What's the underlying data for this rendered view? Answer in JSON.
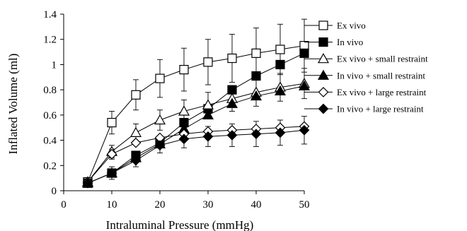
{
  "chart_data": {
    "type": "line",
    "title": "",
    "xlabel": "Intraluminal Pressure (mmHg)",
    "ylabel": "Inflated Volume (ml)",
    "xlim": [
      0,
      50
    ],
    "ylim": [
      0,
      1.4
    ],
    "xticks": [
      0,
      10,
      20,
      30,
      40,
      50
    ],
    "yticks": [
      0,
      0.2,
      0.4,
      0.6,
      0.8,
      1,
      1.2,
      1.4
    ],
    "xtick_labels": [
      "0",
      "10",
      "20",
      "30",
      "40",
      "50"
    ],
    "ytick_labels": [
      "0",
      "0.2",
      "0.4",
      "0.6",
      "0.8",
      "1",
      "1.2",
      "1.4"
    ],
    "grid": false,
    "legend_position": "right",
    "x": [
      5,
      10,
      15,
      20,
      25,
      30,
      35,
      40,
      45,
      50
    ],
    "series": [
      {
        "name": "Ex vivo",
        "marker": "square-open",
        "values": [
          0.07,
          0.54,
          0.76,
          0.89,
          0.96,
          1.02,
          1.05,
          1.09,
          1.12,
          1.15
        ],
        "error": [
          0.0,
          0.09,
          0.12,
          0.15,
          0.17,
          0.18,
          0.19,
          0.2,
          0.2,
          0.21
        ]
      },
      {
        "name": "In vivo",
        "marker": "square-filled",
        "values": [
          0.06,
          0.14,
          0.28,
          0.38,
          0.54,
          0.65,
          0.8,
          0.91,
          1.0,
          1.09
        ],
        "error": [
          0.0,
          0.0,
          0.0,
          0.0,
          0.0,
          0.0,
          0.0,
          0.0,
          0.0,
          0.0
        ]
      },
      {
        "name": "Ex vivo + small restraint",
        "marker": "triangle-open",
        "values": [
          0.07,
          0.31,
          0.46,
          0.56,
          0.63,
          0.68,
          0.73,
          0.78,
          0.82,
          0.85
        ],
        "error": [
          0.0,
          0.05,
          0.07,
          0.08,
          0.09,
          0.1,
          0.1,
          0.11,
          0.11,
          0.12
        ]
      },
      {
        "name": "In vivo + small restraint",
        "marker": "triangle-filled",
        "values": [
          0.06,
          0.14,
          0.26,
          0.37,
          0.49,
          0.6,
          0.69,
          0.75,
          0.79,
          0.83
        ],
        "error": [
          0.0,
          0.0,
          0.0,
          0.0,
          0.0,
          0.0,
          0.0,
          0.0,
          0.0,
          0.0
        ]
      },
      {
        "name": "Ex vivo + large restraint",
        "marker": "diamond-open",
        "values": [
          0.07,
          0.29,
          0.38,
          0.42,
          0.45,
          0.47,
          0.48,
          0.49,
          0.5,
          0.51
        ],
        "error": [
          0.0,
          0.04,
          0.0,
          0.0,
          0.0,
          0.0,
          0.0,
          0.0,
          0.0,
          0.0
        ]
      },
      {
        "name": "In vivo + large restraint",
        "marker": "diamond-filled",
        "values": [
          0.06,
          0.14,
          0.24,
          0.36,
          0.41,
          0.43,
          0.44,
          0.45,
          0.46,
          0.48
        ],
        "error": [
          0.0,
          0.05,
          0.05,
          0.06,
          0.07,
          0.08,
          0.09,
          0.1,
          0.1,
          0.11
        ]
      }
    ]
  }
}
